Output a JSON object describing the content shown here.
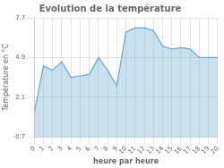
{
  "chart_data": {
    "type": "area",
    "title": "Evolution de la température",
    "xlabel": "heure par heure",
    "ylabel": "Température en °C",
    "x": [
      0,
      1,
      2,
      3,
      4,
      5,
      6,
      7,
      8,
      9,
      10,
      11,
      12,
      13,
      14,
      15,
      16,
      17,
      18,
      19,
      20
    ],
    "values": [
      1.0,
      4.3,
      4.0,
      4.6,
      3.5,
      3.6,
      3.7,
      4.9,
      4.0,
      2.9,
      6.7,
      7.0,
      7.0,
      6.8,
      5.7,
      5.5,
      5.6,
      5.5,
      4.9,
      4.9,
      4.9
    ],
    "color": "#60a8cc",
    "xlim": [
      0,
      20
    ],
    "xticks": [
      0,
      1,
      2,
      3,
      4,
      5,
      6,
      7,
      8,
      9,
      10,
      11,
      12,
      13,
      14,
      15,
      16,
      17,
      18,
      19,
      20
    ],
    "ylim": [
      -0.7,
      7.7
    ],
    "yticks": [
      -0.7,
      2.1,
      4.9,
      7.7
    ],
    "grid": true
  }
}
